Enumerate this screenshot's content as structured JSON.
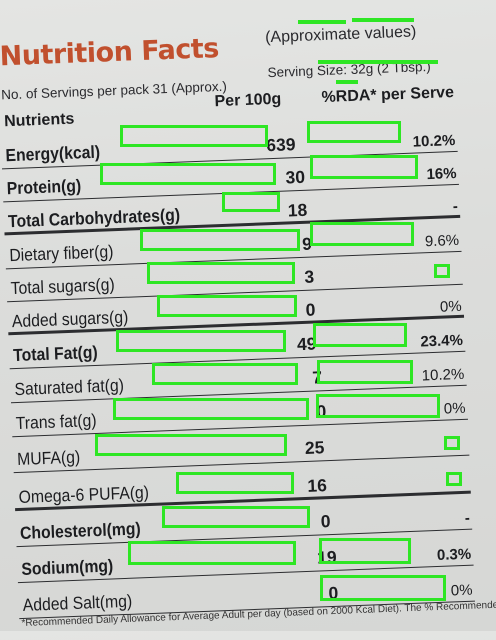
{
  "header": {
    "title": "Nutrition Facts",
    "approx_note": "(Approximate values)",
    "servings": "No. of Servings per pack 31 (Approx.)",
    "serving_size": "Serving Size: 32g (2 Tbsp.)",
    "col_nutrients": "Nutrients",
    "col_per100": "Per 100g",
    "col_rda": "%RDA* per Serve"
  },
  "rows": [
    {
      "name": "Energy(kcal)",
      "value": "639",
      "rda": "10.2%",
      "bold": true
    },
    {
      "name": "Protein(g)",
      "value": "30",
      "rda": "16%",
      "bold": true
    },
    {
      "name": "Total Carbohydrates(g)",
      "value": "18",
      "rda": "-",
      "bold": true
    },
    {
      "name": "Dietary fiber(g)",
      "value": "9",
      "rda": "9.6%",
      "bold": false
    },
    {
      "name": "Total sugars(g)",
      "value": "3",
      "rda": "",
      "bold": false
    },
    {
      "name": "Added sugars(g)",
      "value": "0",
      "rda": "0%",
      "bold": false
    },
    {
      "name": "Total Fat(g)",
      "value": "49",
      "rda": "23.4%",
      "bold": true
    },
    {
      "name": "Saturated fat(g)",
      "value": "7",
      "rda": "10.2%",
      "bold": false
    },
    {
      "name": "Trans fat(g)",
      "value": "0",
      "rda": "0%",
      "bold": false
    },
    {
      "name": "MUFA(g)",
      "value": "25",
      "rda": "",
      "bold": false
    },
    {
      "name": "Omega-6 PUFA(g)",
      "value": "16",
      "rda": "",
      "bold": false
    },
    {
      "name": "Cholesterol(mg)",
      "value": "0",
      "rda": "-",
      "bold": true
    },
    {
      "name": "Sodium(mg)",
      "value": "19",
      "rda": "0.3%",
      "bold": true
    },
    {
      "name": "Added Salt(mg)",
      "value": "0",
      "rda": "0%",
      "bold": false
    }
  ],
  "footer": "*Recommended Daily Allowance for Average Adult per day (based on 2000 Kcal Diet). The % Recommended Daily",
  "colors": {
    "title": "#c1502e",
    "highlight_box": "#2ee624"
  }
}
